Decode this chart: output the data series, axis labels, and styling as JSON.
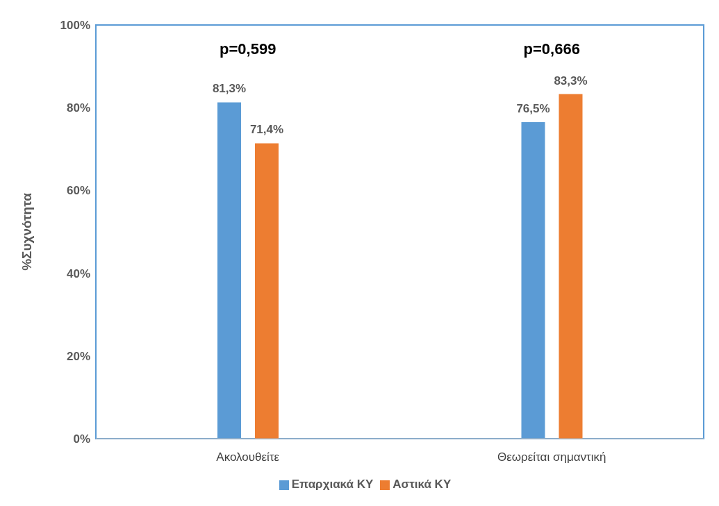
{
  "chart_data": {
    "type": "bar",
    "ylabel": "%Συχνότητα",
    "categories": [
      "Ακολουθείτε",
      "Θεωρείται σημαντική"
    ],
    "series": [
      {
        "name": "Επαρχιακά ΚΥ",
        "color": "#5b9bd5",
        "values": [
          81.3,
          76.5
        ],
        "value_labels": [
          "81,3%",
          "76,5%"
        ]
      },
      {
        "name": "Αστικά ΚΥ",
        "color": "#ed7d31",
        "values": [
          71.4,
          83.3
        ],
        "value_labels": [
          "71,4%",
          "83,3%"
        ]
      }
    ],
    "ylim": [
      0,
      100
    ],
    "yticks": [
      {
        "value": 0,
        "label": "0%"
      },
      {
        "value": 20,
        "label": "20%"
      },
      {
        "value": 40,
        "label": "40%"
      },
      {
        "value": 60,
        "label": "60%"
      },
      {
        "value": 80,
        "label": "80%"
      },
      {
        "value": 100,
        "label": "100%"
      }
    ],
    "annotations": [
      "p=0,599",
      "p=0,666"
    ],
    "grid": false,
    "legend": "bottom"
  }
}
